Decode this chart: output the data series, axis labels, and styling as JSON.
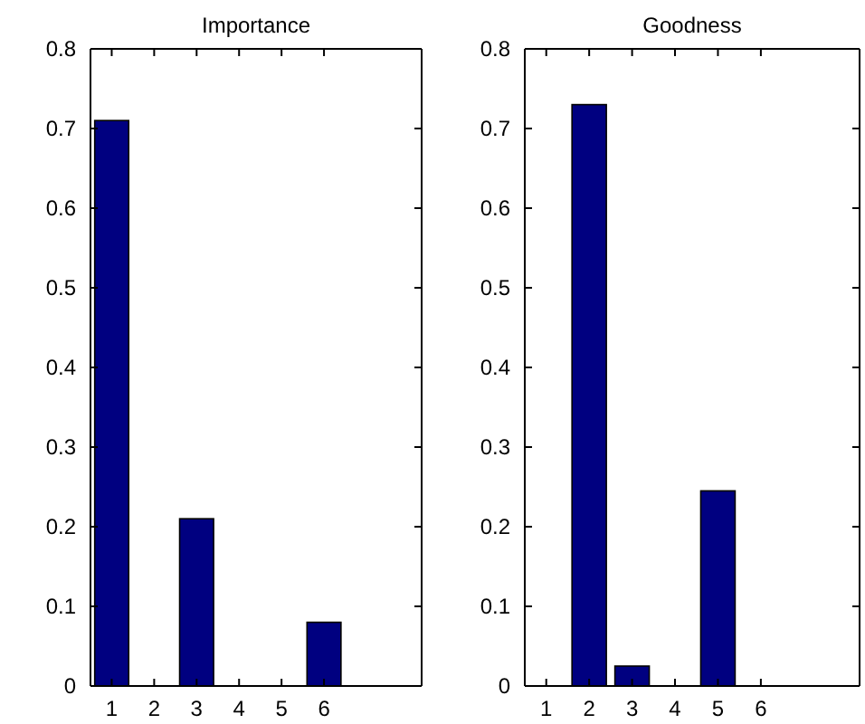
{
  "chart_data": [
    {
      "type": "bar",
      "title": "Importance",
      "x": [
        1,
        2,
        3,
        4,
        5,
        6
      ],
      "values": [
        0.71,
        0,
        0.21,
        0,
        0,
        0.08
      ],
      "color": "#000080",
      "xlim": [
        0.5,
        8.3
      ],
      "xticks": [
        1,
        2,
        3,
        4,
        5,
        6
      ],
      "ylim": [
        0,
        0.8
      ],
      "yticks": [
        0,
        0.1,
        0.2,
        0.3,
        0.4,
        0.5,
        0.6,
        0.7,
        0.8
      ],
      "grid": false
    },
    {
      "type": "bar",
      "title": "Goodness",
      "x": [
        1,
        2,
        3,
        4,
        5,
        6
      ],
      "values": [
        0,
        0.73,
        0.025,
        0,
        0.245,
        0
      ],
      "color": "#000080",
      "xlim": [
        0.5,
        8.3
      ],
      "xticks": [
        1,
        2,
        3,
        4,
        5,
        6
      ],
      "ylim": [
        0,
        0.8
      ],
      "yticks": [
        0,
        0.1,
        0.2,
        0.3,
        0.4,
        0.5,
        0.6,
        0.7,
        0.8
      ],
      "grid": false
    }
  ]
}
